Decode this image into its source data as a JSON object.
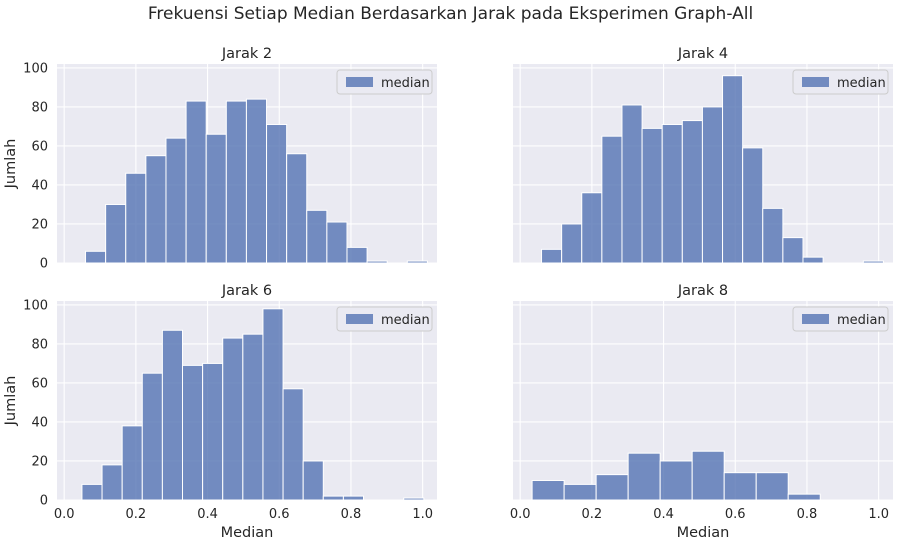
{
  "suptitle": "Frekuensi Setiap Median Berdasarkan Jarak pada Eksperimen Graph-All",
  "colors": {
    "bar": "#5876b4",
    "panel_bg": "#eaeaf2",
    "grid": "#ffffff",
    "text": "#262626",
    "legend_bg": "#eaeaf2"
  },
  "chart_data": [
    {
      "type": "bar",
      "title": "Jarak 2",
      "xlabel": "",
      "ylabel": "Jumlah",
      "legend": "median",
      "legend_position": "top-right",
      "bin_width": 0.0561,
      "bin_starts": [
        0.0596,
        0.1157,
        0.1718,
        0.2279,
        0.284,
        0.3401,
        0.3962,
        0.4523,
        0.5084,
        0.5645,
        0.6206,
        0.6767,
        0.7328,
        0.7889,
        0.845,
        0.9011,
        0.9572
      ],
      "values": [
        6,
        30,
        46,
        55,
        64,
        83,
        66,
        83,
        84,
        71,
        56,
        27,
        21,
        8,
        1,
        0,
        1
      ],
      "xlim": [
        -0.02,
        1.04
      ],
      "ylim": [
        0,
        102
      ],
      "xticks": [
        "0.0",
        "0.2",
        "0.4",
        "0.6",
        "0.8",
        "1.0"
      ],
      "xtick_values": [
        0,
        0.2,
        0.4,
        0.6,
        0.8,
        1.0
      ],
      "yticks": [
        "0",
        "20",
        "40",
        "60",
        "80",
        "100"
      ],
      "ytick_values": [
        0,
        20,
        40,
        60,
        80,
        100
      ],
      "show_xticklabels": false,
      "show_yticklabels": true
    },
    {
      "type": "bar",
      "title": "Jarak 4",
      "xlabel": "",
      "ylabel": "",
      "legend": "median",
      "legend_position": "top-right",
      "bin_width": 0.0561,
      "bin_starts": [
        0.0596,
        0.1157,
        0.1718,
        0.2279,
        0.284,
        0.3401,
        0.3962,
        0.4523,
        0.5084,
        0.5645,
        0.6206,
        0.6767,
        0.7328,
        0.7889,
        0.845,
        0.9011,
        0.9572
      ],
      "values": [
        7,
        20,
        36,
        65,
        81,
        69,
        71,
        73,
        80,
        96,
        59,
        28,
        13,
        3,
        0,
        0,
        1
      ],
      "xlim": [
        -0.02,
        1.04
      ],
      "ylim": [
        0,
        102
      ],
      "xticks": [
        "0.0",
        "0.2",
        "0.4",
        "0.6",
        "0.8",
        "1.0"
      ],
      "xtick_values": [
        0,
        0.2,
        0.4,
        0.6,
        0.8,
        1.0
      ],
      "yticks": [
        "0",
        "20",
        "40",
        "60",
        "80",
        "100"
      ],
      "ytick_values": [
        0,
        20,
        40,
        60,
        80,
        100
      ],
      "show_xticklabels": false,
      "show_yticklabels": false
    },
    {
      "type": "bar",
      "title": "Jarak 6",
      "xlabel": "Median",
      "ylabel": "Jumlah",
      "legend": "median",
      "legend_position": "top-right",
      "bin_width": 0.0561,
      "bin_starts": [
        0.0496,
        0.1057,
        0.1618,
        0.2179,
        0.274,
        0.3301,
        0.3862,
        0.4423,
        0.4984,
        0.5545,
        0.6106,
        0.6667,
        0.7228,
        0.7789,
        0.835,
        0.8911,
        0.9472
      ],
      "values": [
        8,
        18,
        38,
        65,
        87,
        69,
        70,
        83,
        85,
        98,
        57,
        20,
        2,
        2,
        0,
        0,
        1
      ],
      "xlim": [
        -0.02,
        1.04
      ],
      "ylim": [
        0,
        102
      ],
      "xticks": [
        "0.0",
        "0.2",
        "0.4",
        "0.6",
        "0.8",
        "1.0"
      ],
      "xtick_values": [
        0,
        0.2,
        0.4,
        0.6,
        0.8,
        1.0
      ],
      "yticks": [
        "0",
        "20",
        "40",
        "60",
        "80",
        "100"
      ],
      "ytick_values": [
        0,
        20,
        40,
        60,
        80,
        100
      ],
      "show_xticklabels": true,
      "show_yticklabels": true
    },
    {
      "type": "bar",
      "title": "Jarak 8",
      "xlabel": "Median",
      "ylabel": "",
      "legend": "median",
      "legend_position": "top-right",
      "bin_width": 0.0893,
      "bin_starts": [
        0.0333,
        0.1226,
        0.2119,
        0.3012,
        0.3905,
        0.4798,
        0.5691,
        0.6584,
        0.7477
      ],
      "values": [
        10,
        8,
        13,
        24,
        20,
        25,
        14,
        14,
        3
      ],
      "xlim": [
        -0.02,
        1.04
      ],
      "ylim": [
        0,
        102
      ],
      "xticks": [
        "0.0",
        "0.2",
        "0.4",
        "0.6",
        "0.8",
        "1.0"
      ],
      "xtick_values": [
        0,
        0.2,
        0.4,
        0.6,
        0.8,
        1.0
      ],
      "yticks": [
        "0",
        "20",
        "40",
        "60",
        "80",
        "100"
      ],
      "ytick_values": [
        0,
        20,
        40,
        60,
        80,
        100
      ],
      "show_xticklabels": true,
      "show_yticklabels": false
    }
  ]
}
